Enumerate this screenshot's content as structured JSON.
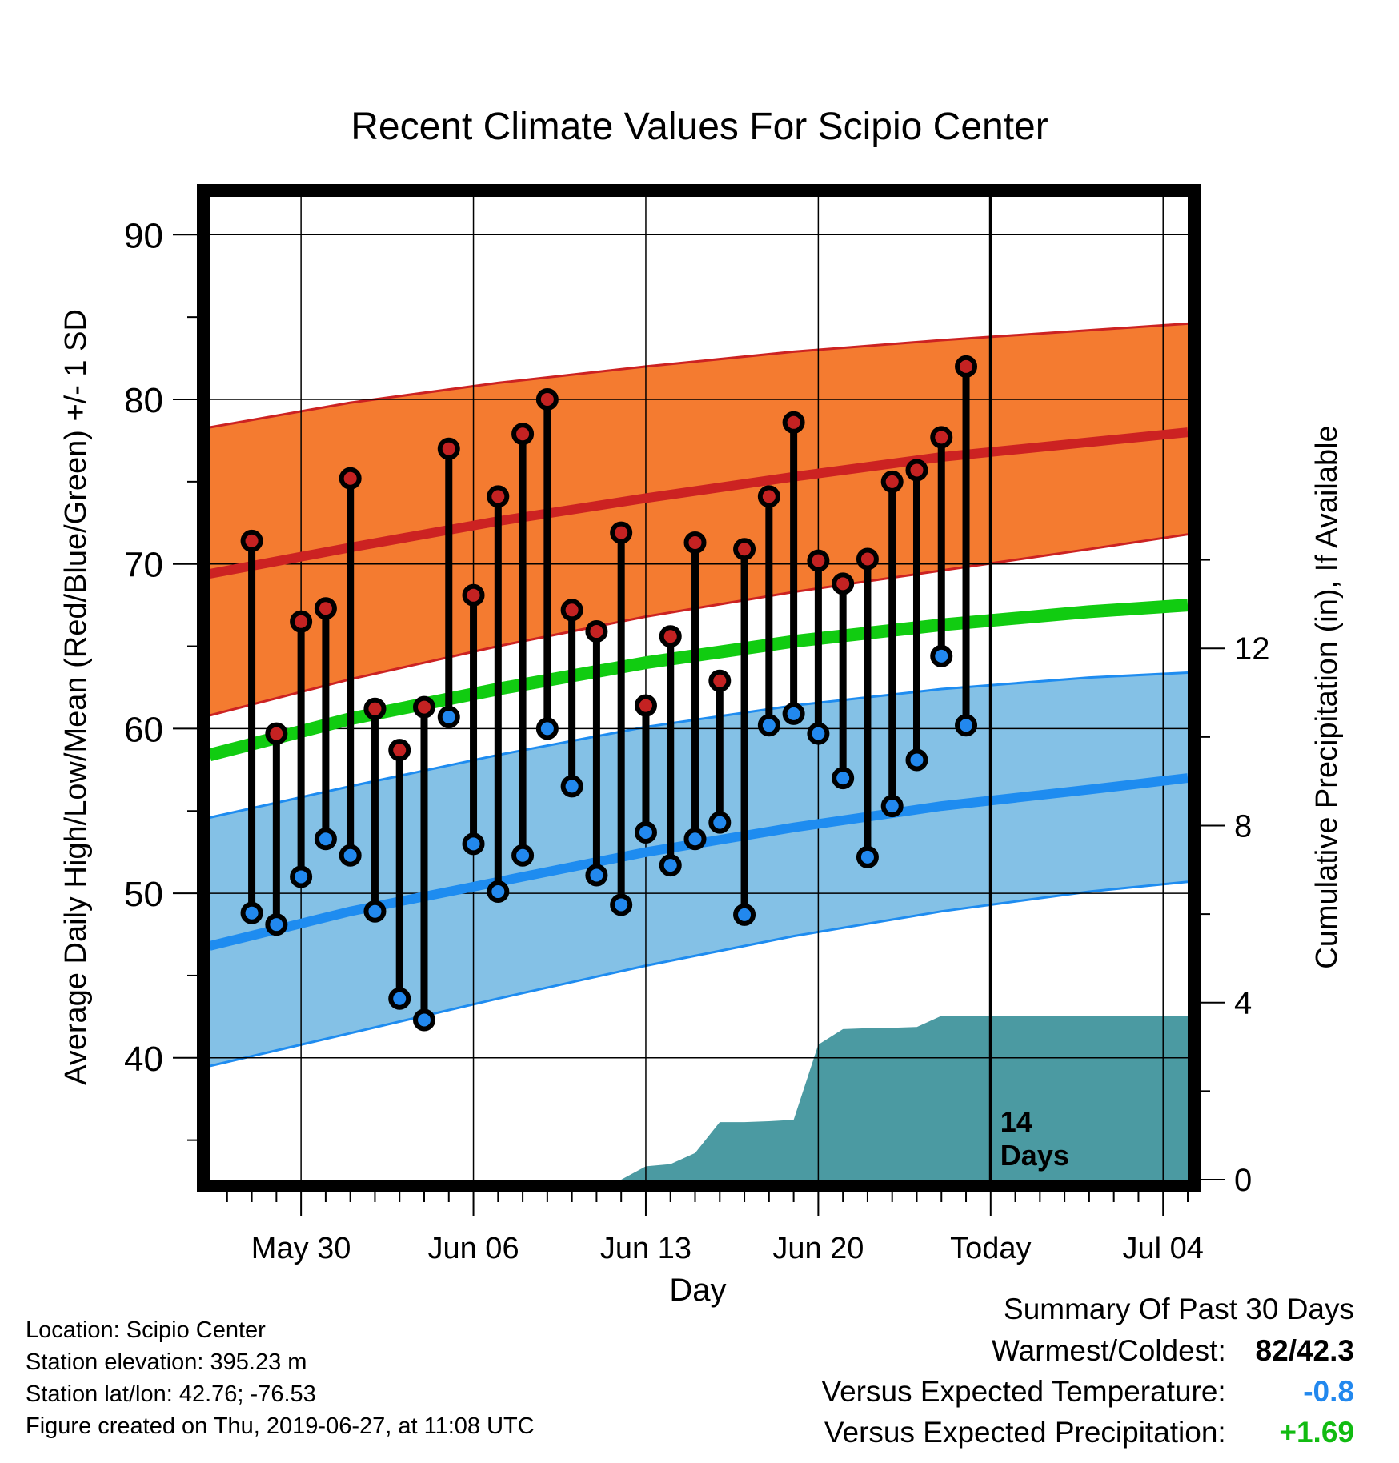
{
  "chart_data": {
    "type": "line",
    "title": "Recent Climate Values For Scipio Center",
    "xlabel": "Day",
    "ylabel": "Average Daily High/Low/Mean (Red/Blue/Green) +/- 1 SD",
    "y2label": "Cumulative Precipitation (in), If Available",
    "x_tick_labels": [
      "May 30",
      "Jun 06",
      "Jun 13",
      "Jun 20",
      "Today",
      "Jul 04"
    ],
    "x_tick_dates": [
      "2019-05-30",
      "2019-06-06",
      "2019-06-13",
      "2019-06-20",
      "2019-06-27",
      "2019-07-04"
    ],
    "xlim": [
      "2019-05-26T19:00",
      "2019-07-05T12:00"
    ],
    "ylim": [
      32.6,
      92.3
    ],
    "yticks": [
      40,
      50,
      60,
      70,
      80,
      90
    ],
    "y2lim": [
      0,
      22.2
    ],
    "y2ticks": [
      0,
      4,
      8,
      12
    ],
    "today_marker": {
      "date": "2019-06-27",
      "label_line1": "14",
      "label_line2": "Days"
    },
    "grid": true,
    "colors": {
      "high_band": "#f47b30",
      "high_mean": "#cc2222",
      "low_band": "#84c1e6",
      "low_mean": "#1e8cf0",
      "mean": "#11cc11",
      "precip": "#4b9aa2",
      "high_dot": "#c42222",
      "low_dot": "#2288ee"
    },
    "normals": {
      "dates": [
        "2019-05-26T19:00",
        "2019-06-01",
        "2019-06-07",
        "2019-06-13",
        "2019-06-19",
        "2019-06-25",
        "2019-07-01",
        "2019-07-05T12:00"
      ],
      "high_mean": [
        69.4,
        71.0,
        72.6,
        74.0,
        75.3,
        76.5,
        77.4,
        78.0
      ],
      "high_sd_upper": [
        78.3,
        79.8,
        81.0,
        82.0,
        82.9,
        83.6,
        84.2,
        84.6
      ],
      "high_sd_lower": [
        60.8,
        63.0,
        65.0,
        66.8,
        68.3,
        69.6,
        70.9,
        71.8
      ],
      "mean": [
        58.4,
        60.6,
        62.4,
        64.0,
        65.3,
        66.3,
        67.1,
        67.5
      ],
      "low_mean": [
        46.8,
        48.9,
        50.7,
        52.5,
        54.0,
        55.3,
        56.3,
        57.0
      ],
      "low_sd_upper": [
        54.6,
        56.5,
        58.4,
        60.1,
        61.4,
        62.4,
        63.1,
        63.4
      ],
      "low_sd_lower": [
        39.5,
        41.5,
        43.6,
        45.6,
        47.4,
        48.9,
        50.1,
        50.7
      ]
    },
    "series": [
      {
        "name": "High",
        "dates": [
          "2019-05-28",
          "2019-05-29",
          "2019-05-30",
          "2019-05-31",
          "2019-06-01",
          "2019-06-02",
          "2019-06-03",
          "2019-06-04",
          "2019-06-05",
          "2019-06-06",
          "2019-06-07",
          "2019-06-08",
          "2019-06-09",
          "2019-06-10",
          "2019-06-11",
          "2019-06-12",
          "2019-06-13",
          "2019-06-14",
          "2019-06-15",
          "2019-06-16",
          "2019-06-17",
          "2019-06-18",
          "2019-06-19",
          "2019-06-20",
          "2019-06-21",
          "2019-06-22",
          "2019-06-23",
          "2019-06-24",
          "2019-06-25",
          "2019-06-26"
        ],
        "values": [
          71.4,
          59.7,
          66.5,
          67.3,
          75.2,
          61.2,
          58.7,
          61.3,
          77.0,
          68.1,
          74.1,
          77.9,
          80.0,
          67.2,
          65.9,
          71.9,
          61.4,
          65.6,
          71.3,
          62.9,
          70.9,
          74.1,
          78.6,
          70.2,
          68.8,
          70.3,
          75.0,
          75.7,
          77.7,
          82.0
        ]
      },
      {
        "name": "Low",
        "dates": [
          "2019-05-28",
          "2019-05-29",
          "2019-05-30",
          "2019-05-31",
          "2019-06-01",
          "2019-06-02",
          "2019-06-03",
          "2019-06-04",
          "2019-06-05",
          "2019-06-06",
          "2019-06-07",
          "2019-06-08",
          "2019-06-09",
          "2019-06-10",
          "2019-06-11",
          "2019-06-12",
          "2019-06-13",
          "2019-06-14",
          "2019-06-15",
          "2019-06-16",
          "2019-06-17",
          "2019-06-18",
          "2019-06-19",
          "2019-06-20",
          "2019-06-21",
          "2019-06-22",
          "2019-06-23",
          "2019-06-24",
          "2019-06-25",
          "2019-06-26"
        ],
        "values": [
          48.8,
          48.1,
          51.0,
          53.3,
          52.3,
          48.9,
          43.6,
          42.3,
          60.7,
          53.0,
          50.1,
          52.3,
          60.0,
          56.5,
          51.1,
          49.3,
          53.7,
          51.7,
          53.3,
          54.3,
          48.7,
          60.2,
          60.9,
          59.7,
          57.0,
          52.2,
          55.3,
          58.1,
          64.4,
          60.2
        ]
      }
    ],
    "precip_cumulative": {
      "dates": [
        "2019-06-12",
        "2019-06-13",
        "2019-06-14",
        "2019-06-15",
        "2019-06-16",
        "2019-06-17",
        "2019-06-18",
        "2019-06-19",
        "2019-06-20",
        "2019-06-21",
        "2019-06-22",
        "2019-06-23",
        "2019-06-24",
        "2019-06-25",
        "2019-06-26",
        "2019-06-27",
        "2019-07-05T12:00"
      ],
      "values": [
        0.0,
        0.3,
        0.35,
        0.6,
        1.3,
        1.3,
        1.32,
        1.35,
        3.05,
        3.4,
        3.42,
        3.43,
        3.45,
        3.7,
        3.7,
        3.7,
        3.7
      ]
    }
  },
  "footer": {
    "location": "Location: Scipio Center",
    "elevation": "Station elevation: 395.23 m",
    "latlon": "Station lat/lon: 42.76; -76.53",
    "created": "Figure created on Thu, 2019-06-27, at 11:08 UTC"
  },
  "summary": {
    "heading": "Summary Of Past 30 Days",
    "warmest_label": "Warmest/Coldest:",
    "warmest_value": "82/42.3",
    "temp_label": "Versus Expected Temperature:",
    "temp_value": "-0.8",
    "temp_color": "#2288ee",
    "precip_label": "Versus Expected Precipitation:",
    "precip_value": "+1.69",
    "precip_color": "#11bb11"
  }
}
